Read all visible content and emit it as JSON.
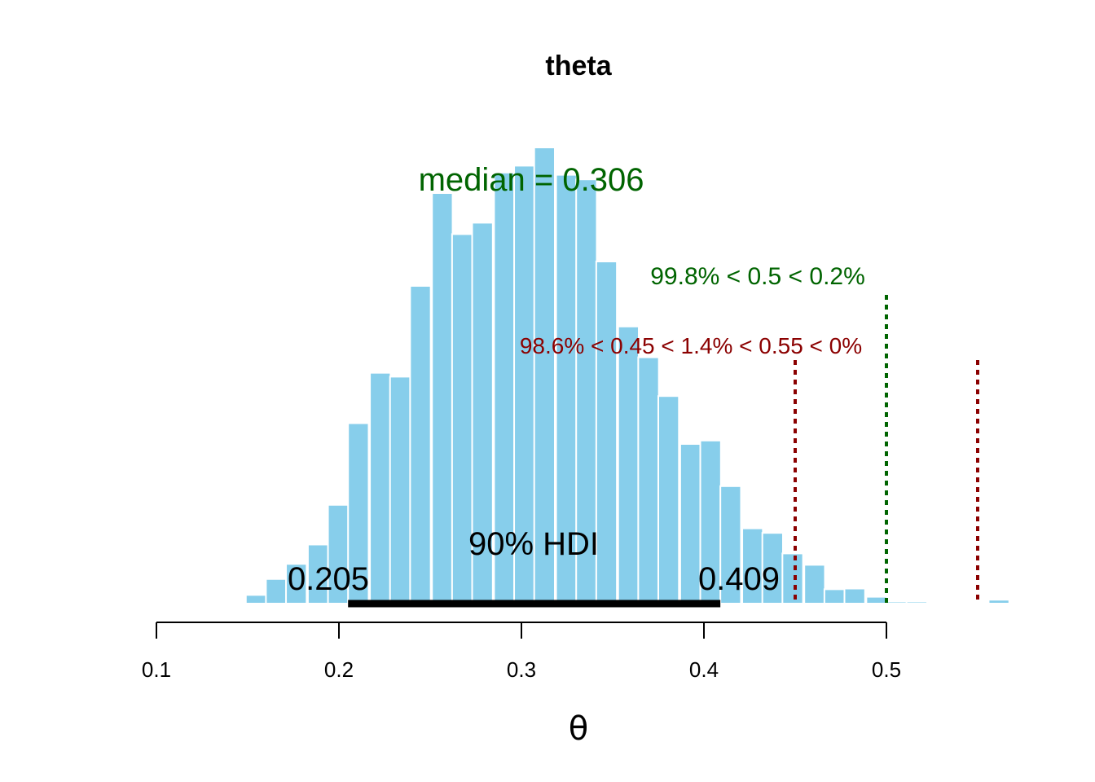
{
  "chart_data": {
    "type": "bar",
    "title": "theta",
    "xlabel": "θ",
    "ylabel": "",
    "xlim": [
      0.1,
      0.56
    ],
    "x_ticks": [
      "0.1",
      "0.2",
      "0.3",
      "0.4",
      "0.5"
    ],
    "bar_color": "#87CEEB",
    "bin_width": 0.0113,
    "bins": [
      {
        "x0": 0.104,
        "count": 0.3
      },
      {
        "x0": 0.115,
        "count": 0.3
      },
      {
        "x0": 0.126,
        "count": 0.3
      },
      {
        "x0": 0.137,
        "count": 0.3
      },
      {
        "x0": 0.149,
        "count": 3.8
      },
      {
        "x0": 0.16,
        "count": 10.8
      },
      {
        "x0": 0.171,
        "count": 17.4
      },
      {
        "x0": 0.183,
        "count": 25.9
      },
      {
        "x0": 0.194,
        "count": 43.3
      },
      {
        "x0": 0.205,
        "count": 79.1
      },
      {
        "x0": 0.217,
        "count": 101.2
      },
      {
        "x0": 0.228,
        "count": 99.5
      },
      {
        "x0": 0.239,
        "count": 139.3
      },
      {
        "x0": 0.251,
        "count": 180.0
      },
      {
        "x0": 0.262,
        "count": 162.0
      },
      {
        "x0": 0.273,
        "count": 167.0
      },
      {
        "x0": 0.285,
        "count": 189.0
      },
      {
        "x0": 0.296,
        "count": 192.0
      },
      {
        "x0": 0.307,
        "count": 200.0
      },
      {
        "x0": 0.319,
        "count": 188.0
      },
      {
        "x0": 0.33,
        "count": 186.0
      },
      {
        "x0": 0.341,
        "count": 150.0
      },
      {
        "x0": 0.353,
        "count": 121.5
      },
      {
        "x0": 0.364,
        "count": 108.0
      },
      {
        "x0": 0.375,
        "count": 91.0
      },
      {
        "x0": 0.387,
        "count": 70.0
      },
      {
        "x0": 0.398,
        "count": 71.5
      },
      {
        "x0": 0.409,
        "count": 51.5
      },
      {
        "x0": 0.421,
        "count": 33.0
      },
      {
        "x0": 0.432,
        "count": 31.0
      },
      {
        "x0": 0.443,
        "count": 22.0
      },
      {
        "x0": 0.455,
        "count": 17.0
      },
      {
        "x0": 0.466,
        "count": 6.3
      },
      {
        "x0": 0.477,
        "count": 6.6
      },
      {
        "x0": 0.489,
        "count": 3.0
      },
      {
        "x0": 0.5,
        "count": 0.9
      },
      {
        "x0": 0.511,
        "count": 0.9
      },
      {
        "x0": 0.556,
        "count": 1.7
      }
    ],
    "annotations": {
      "median_label": "median = 0.306",
      "comparison_label": "99.8% < 0.5 < 0.2%",
      "comparison_value": 0.5,
      "comparison_color": "#006400",
      "rope_label": "98.6% < 0.45 < 1.4% < 0.55 < 0%",
      "rope_low": 0.45,
      "rope_high": 0.55,
      "rope_color": "#8B0000",
      "hdi_label": "90% HDI",
      "hdi_low": 0.205,
      "hdi_high": 0.409,
      "hdi_low_label": "0.205",
      "hdi_high_label": "0.409"
    }
  }
}
